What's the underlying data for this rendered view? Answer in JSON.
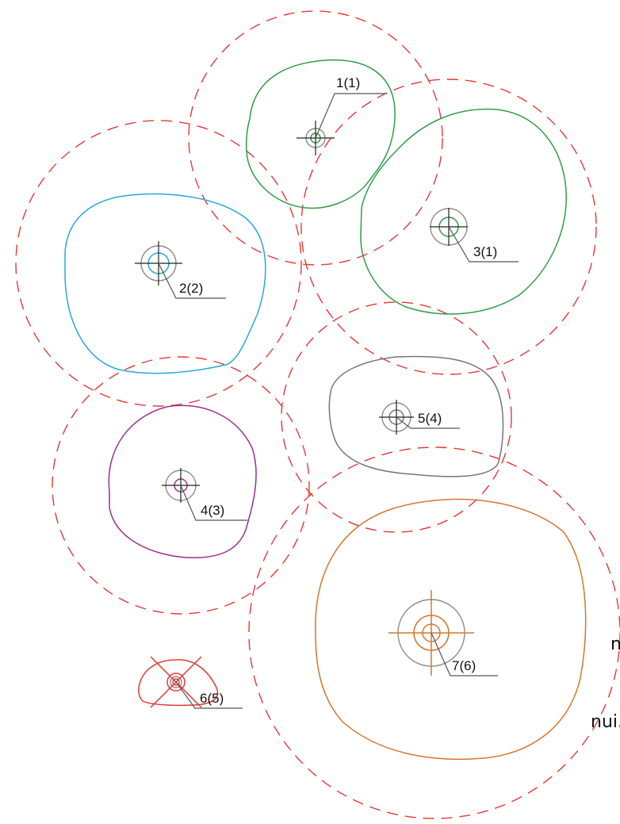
{
  "colors": {
    "zone_dashed": "#e53935",
    "leader": "#555555",
    "ring": "#8c8c8c"
  },
  "edge_text": [
    "n",
    "nui."
  ],
  "items": [
    {
      "label": "1(1)",
      "color": "#2e9e48"
    },
    {
      "label": "2(2)",
      "color": "#29a8dd"
    },
    {
      "label": "3(1)",
      "color": "#2e9e48"
    },
    {
      "label": "4(3)",
      "color": "#9b2f8f"
    },
    {
      "label": "5(4)",
      "color": "#777777"
    },
    {
      "label": "6(5)",
      "color": "#e53935"
    },
    {
      "label": "7(6)",
      "color": "#d7772a"
    }
  ]
}
